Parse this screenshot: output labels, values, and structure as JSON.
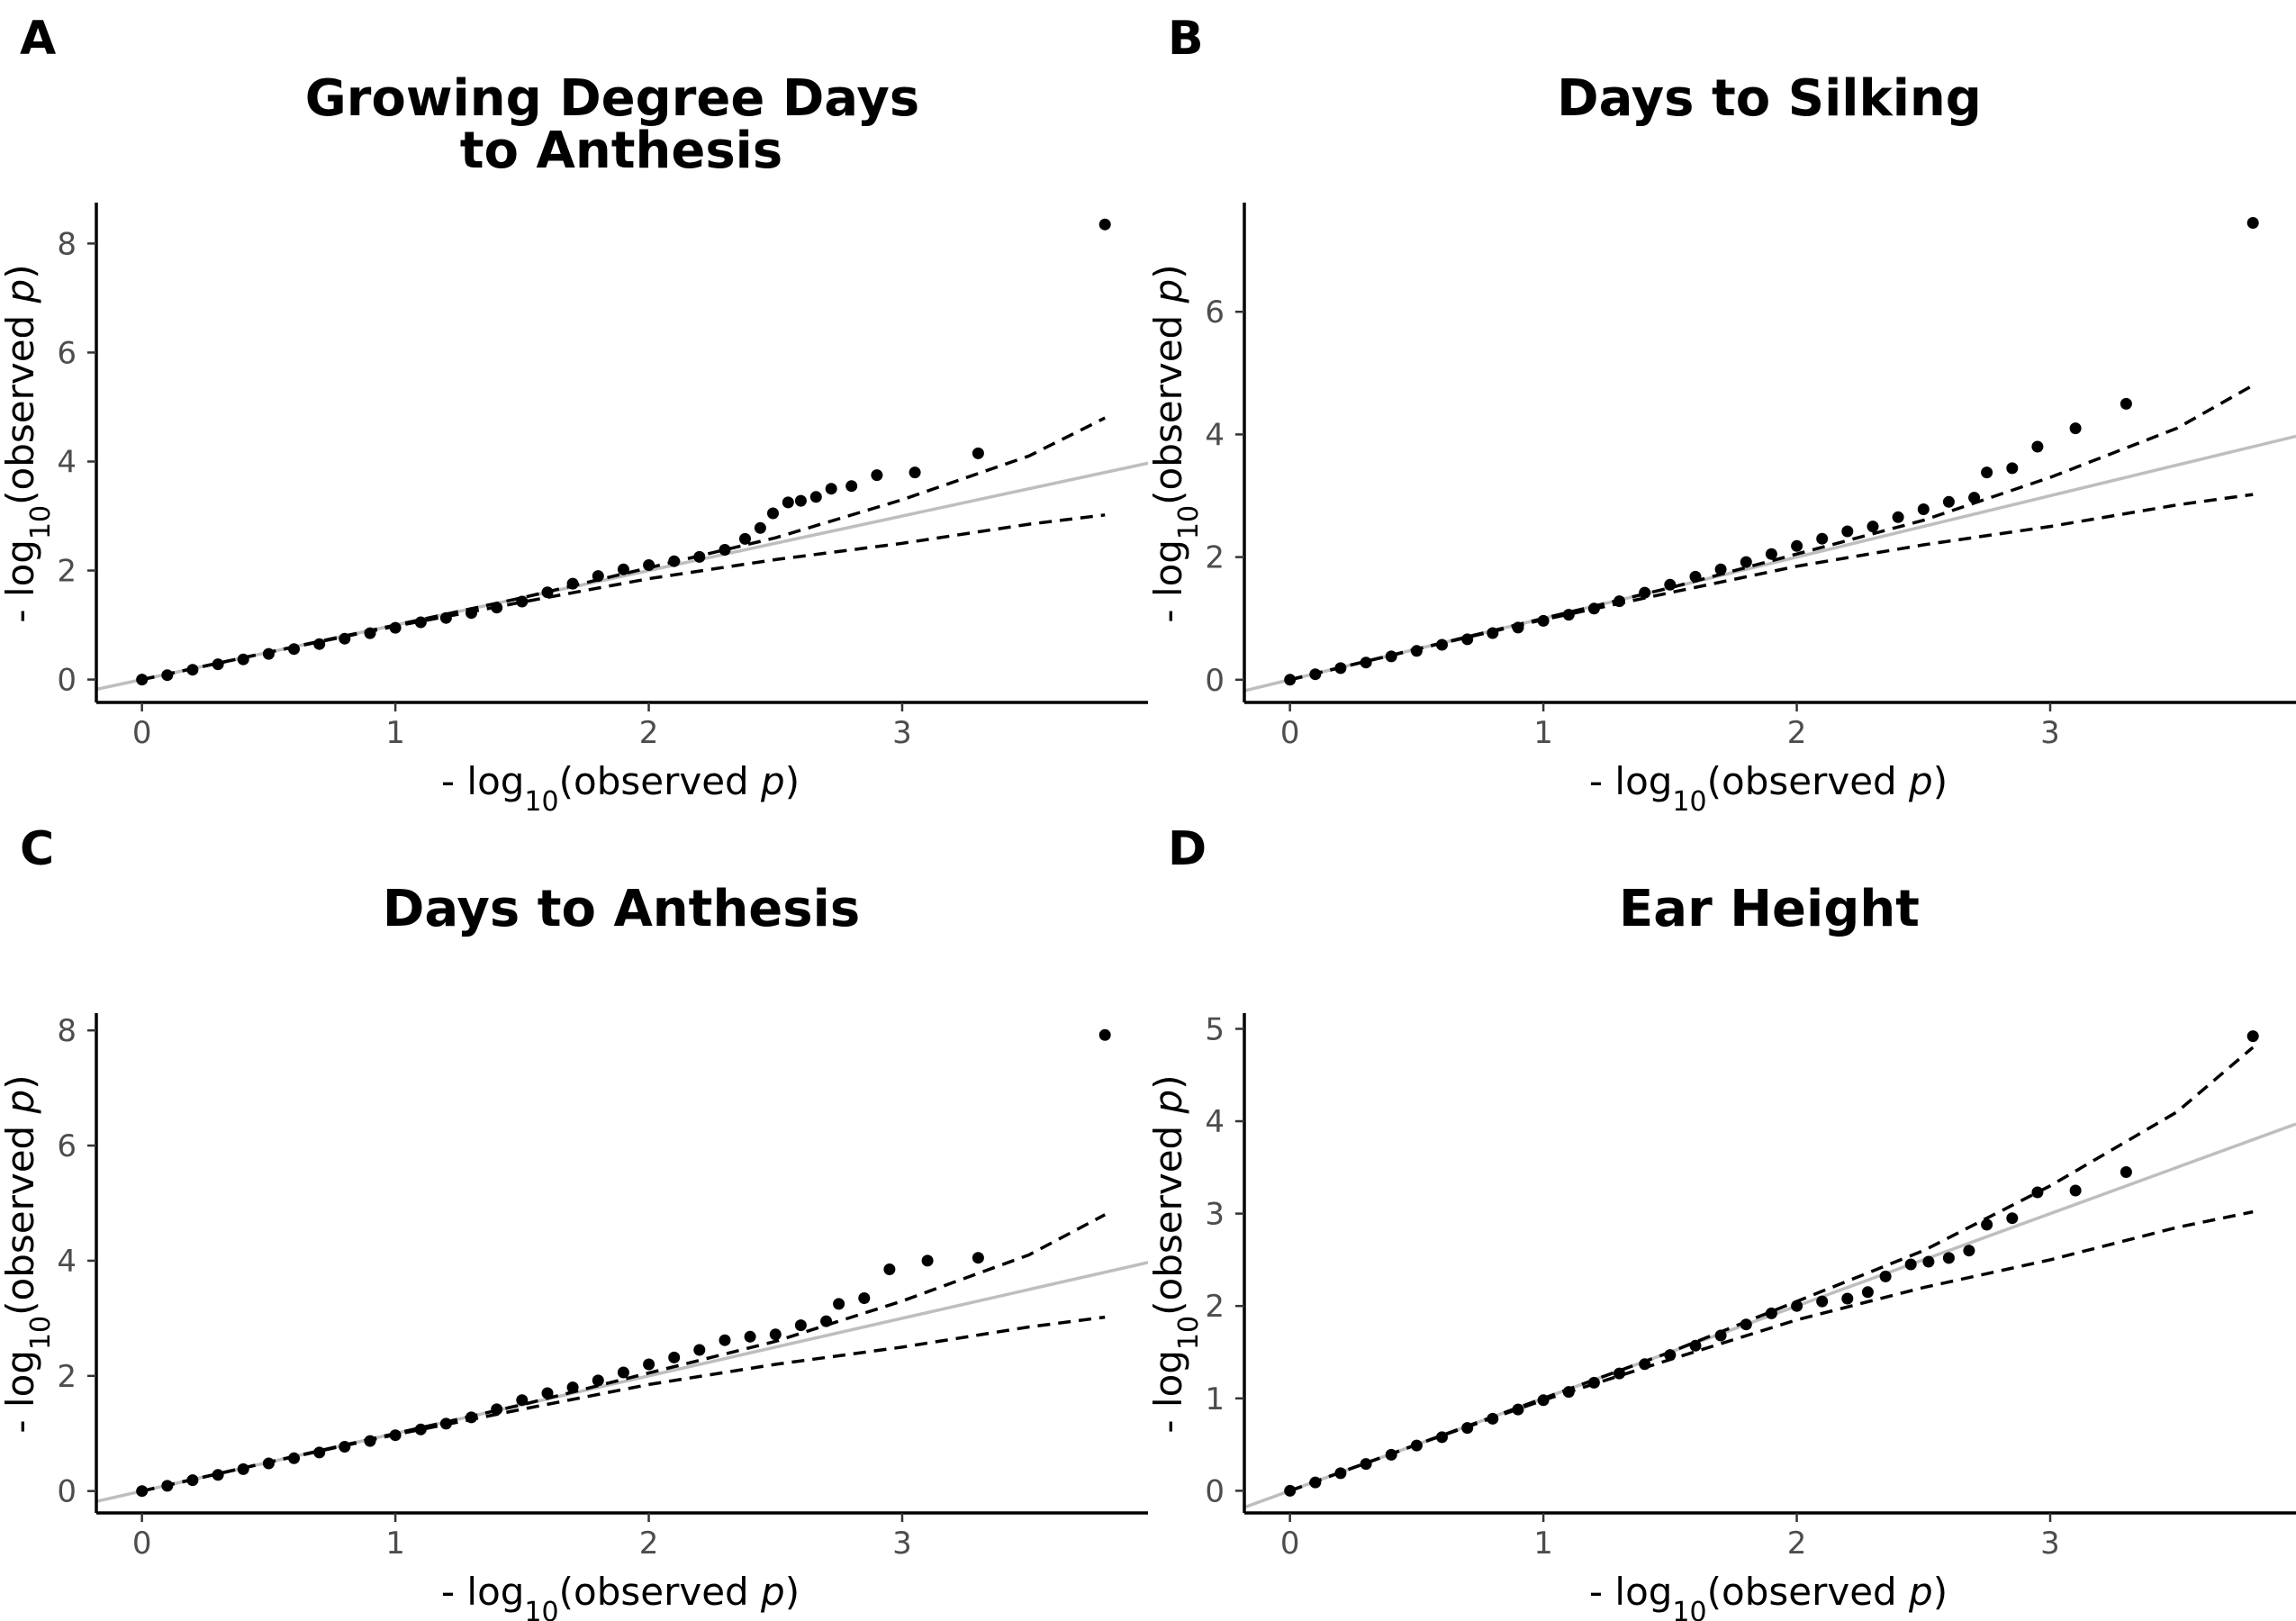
{
  "chart_data": [
    {
      "type": "scatter",
      "panel_label": "A",
      "title": [
        "Growing Degree Days",
        "to Anthesis"
      ],
      "xlabel": "- log10(observed p)",
      "ylabel": "- log10(observed p)",
      "xlim": [
        -0.18,
        3.97
      ],
      "ylim": [
        -0.42,
        8.75
      ],
      "xticks": [
        0,
        1,
        2,
        3
      ],
      "yticks": [
        0,
        2,
        4,
        6,
        8
      ],
      "grid": false,
      "reference_line": "y = x",
      "reference_color": "#bebebe",
      "confidence_upper": [
        [
          0,
          0
        ],
        [
          0.5,
          0.5
        ],
        [
          1,
          1
        ],
        [
          1.5,
          1.5
        ],
        [
          2,
          2.05
        ],
        [
          2.5,
          2.6
        ],
        [
          3,
          3.3
        ],
        [
          3.5,
          4.1
        ],
        [
          3.8,
          4.8
        ]
      ],
      "confidence_lower": [
        [
          0,
          0
        ],
        [
          0.5,
          0.5
        ],
        [
          1,
          0.98
        ],
        [
          1.5,
          1.42
        ],
        [
          2,
          1.85
        ],
        [
          2.5,
          2.2
        ],
        [
          3,
          2.5
        ],
        [
          3.5,
          2.85
        ],
        [
          3.8,
          3.02
        ]
      ],
      "points": [
        [
          0,
          0
        ],
        [
          0.1,
          0.08
        ],
        [
          0.2,
          0.18
        ],
        [
          0.3,
          0.28
        ],
        [
          0.4,
          0.37
        ],
        [
          0.5,
          0.47
        ],
        [
          0.6,
          0.56
        ],
        [
          0.7,
          0.65
        ],
        [
          0.8,
          0.75
        ],
        [
          0.9,
          0.85
        ],
        [
          1.0,
          0.95
        ],
        [
          1.1,
          1.05
        ],
        [
          1.2,
          1.13
        ],
        [
          1.3,
          1.22
        ],
        [
          1.4,
          1.32
        ],
        [
          1.5,
          1.43
        ],
        [
          1.6,
          1.6
        ],
        [
          1.7,
          1.76
        ],
        [
          1.8,
          1.9
        ],
        [
          1.9,
          2.02
        ],
        [
          2.0,
          2.1
        ],
        [
          2.1,
          2.17
        ],
        [
          2.2,
          2.25
        ],
        [
          2.3,
          2.38
        ],
        [
          2.38,
          2.58
        ],
        [
          2.44,
          2.78
        ],
        [
          2.49,
          3.05
        ],
        [
          2.55,
          3.25
        ],
        [
          2.6,
          3.28
        ],
        [
          2.66,
          3.35
        ],
        [
          2.72,
          3.5
        ],
        [
          2.8,
          3.55
        ],
        [
          2.9,
          3.75
        ],
        [
          3.05,
          3.8
        ],
        [
          3.3,
          4.15
        ],
        [
          3.8,
          8.35
        ]
      ],
      "point_color": "#000000"
    },
    {
      "type": "scatter",
      "panel_label": "B",
      "title": [
        "Days to Silking"
      ],
      "xlabel": "- log10(observed p)",
      "ylabel": "- log10(observed p)",
      "xlim": [
        -0.18,
        3.97
      ],
      "ylim": [
        -0.37,
        7.78
      ],
      "xticks": [
        0,
        1,
        2,
        3
      ],
      "yticks": [
        0,
        2,
        4,
        6
      ],
      "grid": false,
      "reference_line": "y = x",
      "reference_color": "#bebebe",
      "confidence_upper": [
        [
          0,
          0
        ],
        [
          0.5,
          0.5
        ],
        [
          1,
          1
        ],
        [
          1.5,
          1.5
        ],
        [
          2,
          2.05
        ],
        [
          2.5,
          2.6
        ],
        [
          3,
          3.3
        ],
        [
          3.5,
          4.1
        ],
        [
          3.8,
          4.8
        ]
      ],
      "confidence_lower": [
        [
          0,
          0
        ],
        [
          0.5,
          0.5
        ],
        [
          1,
          0.98
        ],
        [
          1.5,
          1.42
        ],
        [
          2,
          1.85
        ],
        [
          2.5,
          2.2
        ],
        [
          3,
          2.5
        ],
        [
          3.5,
          2.85
        ],
        [
          3.8,
          3.02
        ]
      ],
      "points": [
        [
          0,
          0
        ],
        [
          0.1,
          0.09
        ],
        [
          0.2,
          0.19
        ],
        [
          0.3,
          0.28
        ],
        [
          0.4,
          0.38
        ],
        [
          0.5,
          0.47
        ],
        [
          0.6,
          0.57
        ],
        [
          0.7,
          0.66
        ],
        [
          0.8,
          0.76
        ],
        [
          0.9,
          0.85
        ],
        [
          1.0,
          0.96
        ],
        [
          1.1,
          1.06
        ],
        [
          1.2,
          1.16
        ],
        [
          1.3,
          1.28
        ],
        [
          1.4,
          1.42
        ],
        [
          1.5,
          1.55
        ],
        [
          1.6,
          1.68
        ],
        [
          1.7,
          1.8
        ],
        [
          1.8,
          1.92
        ],
        [
          1.9,
          2.05
        ],
        [
          2.0,
          2.18
        ],
        [
          2.1,
          2.3
        ],
        [
          2.2,
          2.42
        ],
        [
          2.3,
          2.5
        ],
        [
          2.4,
          2.65
        ],
        [
          2.5,
          2.78
        ],
        [
          2.6,
          2.9
        ],
        [
          2.7,
          2.97
        ],
        [
          2.75,
          3.38
        ],
        [
          2.85,
          3.45
        ],
        [
          2.95,
          3.8
        ],
        [
          3.1,
          4.1
        ],
        [
          3.3,
          4.5
        ],
        [
          3.8,
          7.45
        ]
      ],
      "point_color": "#000000"
    },
    {
      "type": "scatter",
      "panel_label": "C",
      "title": [
        "Days to Anthesis"
      ],
      "xlabel": "- log10(observed p)",
      "ylabel": "- log10(observed p)",
      "xlim": [
        -0.18,
        3.97
      ],
      "ylim": [
        -0.38,
        8.3
      ],
      "xticks": [
        0,
        1,
        2,
        3
      ],
      "yticks": [
        0,
        2,
        4,
        6,
        8
      ],
      "grid": false,
      "reference_line": "y = x",
      "reference_color": "#bebebe",
      "confidence_upper": [
        [
          0,
          0
        ],
        [
          0.5,
          0.5
        ],
        [
          1,
          1
        ],
        [
          1.5,
          1.5
        ],
        [
          2,
          2.05
        ],
        [
          2.5,
          2.6
        ],
        [
          3,
          3.3
        ],
        [
          3.5,
          4.1
        ],
        [
          3.8,
          4.8
        ]
      ],
      "confidence_lower": [
        [
          0,
          0
        ],
        [
          0.5,
          0.5
        ],
        [
          1,
          0.98
        ],
        [
          1.5,
          1.42
        ],
        [
          2,
          1.85
        ],
        [
          2.5,
          2.2
        ],
        [
          3,
          2.5
        ],
        [
          3.5,
          2.85
        ],
        [
          3.8,
          3.02
        ]
      ],
      "points": [
        [
          0,
          0
        ],
        [
          0.1,
          0.09
        ],
        [
          0.2,
          0.19
        ],
        [
          0.3,
          0.28
        ],
        [
          0.4,
          0.38
        ],
        [
          0.5,
          0.48
        ],
        [
          0.6,
          0.57
        ],
        [
          0.7,
          0.67
        ],
        [
          0.8,
          0.77
        ],
        [
          0.9,
          0.87
        ],
        [
          1.0,
          0.97
        ],
        [
          1.1,
          1.07
        ],
        [
          1.2,
          1.17
        ],
        [
          1.3,
          1.28
        ],
        [
          1.4,
          1.42
        ],
        [
          1.5,
          1.58
        ],
        [
          1.6,
          1.7
        ],
        [
          1.7,
          1.8
        ],
        [
          1.8,
          1.92
        ],
        [
          1.9,
          2.06
        ],
        [
          2.0,
          2.2
        ],
        [
          2.1,
          2.32
        ],
        [
          2.2,
          2.45
        ],
        [
          2.3,
          2.62
        ],
        [
          2.4,
          2.68
        ],
        [
          2.5,
          2.72
        ],
        [
          2.6,
          2.88
        ],
        [
          2.7,
          2.95
        ],
        [
          2.75,
          3.25
        ],
        [
          2.85,
          3.35
        ],
        [
          2.95,
          3.85
        ],
        [
          3.1,
          4.0
        ],
        [
          3.3,
          4.05
        ],
        [
          3.8,
          7.92
        ]
      ],
      "point_color": "#000000"
    },
    {
      "type": "scatter",
      "panel_label": "D",
      "title": [
        "Ear Height"
      ],
      "xlabel": "- log10(observed p)",
      "ylabel": "- log10(observed p)",
      "xlim": [
        -0.18,
        3.97
      ],
      "ylim": [
        -0.24,
        5.17
      ],
      "xticks": [
        0,
        1,
        2,
        3
      ],
      "yticks": [
        0,
        1,
        2,
        3,
        4,
        5
      ],
      "grid": false,
      "reference_line": "y = x",
      "reference_color": "#bebebe",
      "confidence_upper": [
        [
          0,
          0
        ],
        [
          0.5,
          0.5
        ],
        [
          1,
          1
        ],
        [
          1.5,
          1.5
        ],
        [
          2,
          2.05
        ],
        [
          2.5,
          2.6
        ],
        [
          3,
          3.3
        ],
        [
          3.5,
          4.1
        ],
        [
          3.8,
          4.8
        ]
      ],
      "confidence_lower": [
        [
          0,
          0
        ],
        [
          0.5,
          0.5
        ],
        [
          1,
          0.98
        ],
        [
          1.5,
          1.42
        ],
        [
          2,
          1.85
        ],
        [
          2.5,
          2.2
        ],
        [
          3,
          2.5
        ],
        [
          3.5,
          2.85
        ],
        [
          3.8,
          3.02
        ]
      ],
      "points": [
        [
          0,
          0
        ],
        [
          0.1,
          0.09
        ],
        [
          0.2,
          0.19
        ],
        [
          0.3,
          0.29
        ],
        [
          0.4,
          0.39
        ],
        [
          0.5,
          0.49
        ],
        [
          0.6,
          0.58
        ],
        [
          0.7,
          0.68
        ],
        [
          0.8,
          0.78
        ],
        [
          0.9,
          0.88
        ],
        [
          1.0,
          0.98
        ],
        [
          1.1,
          1.07
        ],
        [
          1.2,
          1.17
        ],
        [
          1.3,
          1.27
        ],
        [
          1.4,
          1.37
        ],
        [
          1.5,
          1.47
        ],
        [
          1.6,
          1.57
        ],
        [
          1.7,
          1.68
        ],
        [
          1.8,
          1.8
        ],
        [
          1.9,
          1.92
        ],
        [
          2.0,
          2.0
        ],
        [
          2.1,
          2.05
        ],
        [
          2.2,
          2.08
        ],
        [
          2.28,
          2.15
        ],
        [
          2.35,
          2.32
        ],
        [
          2.45,
          2.45
        ],
        [
          2.52,
          2.48
        ],
        [
          2.6,
          2.52
        ],
        [
          2.68,
          2.6
        ],
        [
          2.75,
          2.88
        ],
        [
          2.85,
          2.95
        ],
        [
          2.95,
          3.23
        ],
        [
          3.1,
          3.25
        ],
        [
          3.3,
          3.45
        ],
        [
          3.8,
          4.92
        ]
      ],
      "point_color": "#000000"
    }
  ]
}
